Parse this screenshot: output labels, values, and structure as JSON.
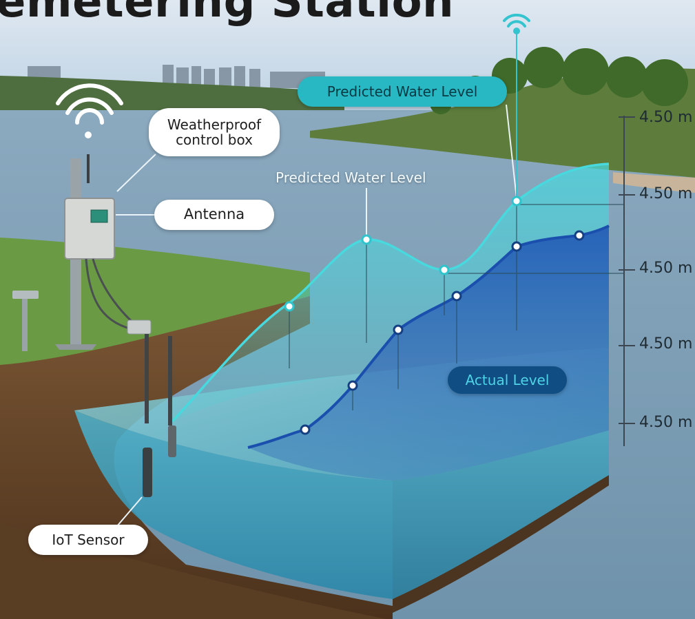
{
  "title": "emetering Station",
  "callouts": {
    "control_box_line1": "Weatherproof",
    "control_box_line2": "control box",
    "antenna": "Antenna",
    "iot_sensor": "IoT Sensor",
    "predicted_top": "Predicted Water Level",
    "predicted_mid": "Predicted Water Level",
    "actual_level": "Actual Level"
  },
  "level_axis": {
    "tick_labels": [
      "4.50 m",
      "4.50 m",
      "4.50 m",
      "4.50 m",
      "4.50 m"
    ]
  },
  "colors": {
    "predicted": "#34d0d8",
    "actual": "#1d57b0",
    "water": "#5fb4c8",
    "soil": "#6b4a2e",
    "grass": "#5f8f3a",
    "sky": "#c9dced"
  }
}
